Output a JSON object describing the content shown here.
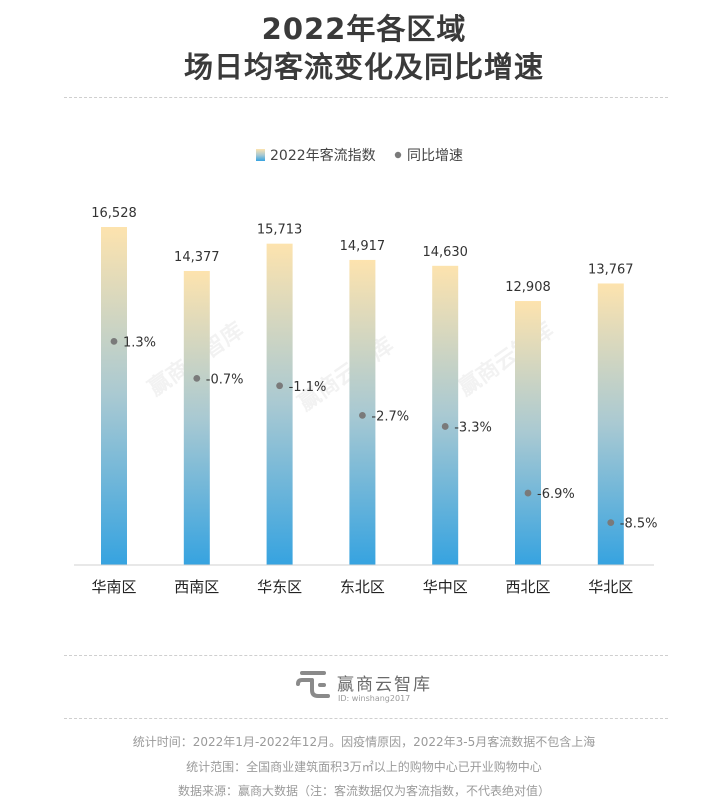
{
  "title_line1": "2022年各区域",
  "title_line2": "场日均客流变化及同比增速",
  "watermark": "赢商云智库",
  "brand": {
    "name": "赢商云智库",
    "id_text": "ID: winshang2017"
  },
  "footnotes": [
    "统计时间：2022年1月-2022年12月。因疫情原因，2022年3-5月客流数据不包含上海",
    "统计范围：全国商业建筑面积3万㎡以上的购物中心已开业购物中心",
    "数据来源：赢商大数据（注：客流数据仅为客流指数，不代表绝对值）"
  ],
  "chart_data": {
    "type": "bar",
    "categories": [
      "华南区",
      "西南区",
      "华东区",
      "东北区",
      "华中区",
      "西北区",
      "华北区"
    ],
    "series": [
      {
        "name": "2022年客流指数",
        "type": "bar",
        "values": [
          16528,
          14377,
          15713,
          14917,
          14630,
          12908,
          13767
        ],
        "labels": [
          "16,528",
          "14,377",
          "15,713",
          "14,917",
          "14,630",
          "12,908",
          "13,767"
        ],
        "color_top": "#fde3ae",
        "color_bottom": "#36a3e0"
      },
      {
        "name": "同比增速",
        "type": "scatter",
        "values": [
          1.3,
          -0.7,
          -1.1,
          -2.7,
          -3.3,
          -6.9,
          -8.5
        ],
        "labels": [
          "1.3%",
          "-0.7%",
          "-1.1%",
          "-2.7%",
          "-3.3%",
          "-6.9%",
          "-8.5%"
        ],
        "color": "#7a7a7a"
      }
    ],
    "legend_position": "top-center",
    "grid": false
  }
}
